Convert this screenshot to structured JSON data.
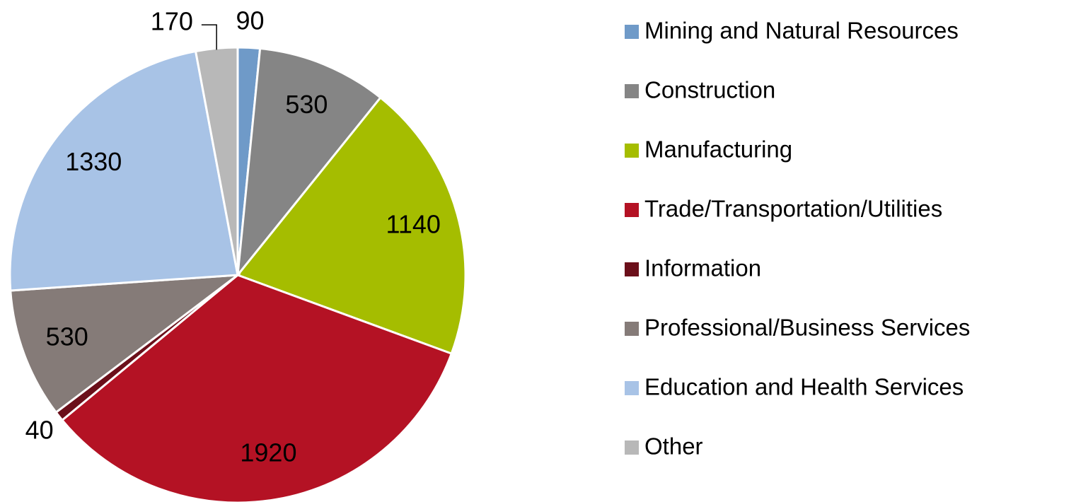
{
  "chart_data": {
    "type": "pie",
    "categories": [
      "Mining and Natural Resources",
      "Construction",
      "Manufacturing",
      "Trade/Transportation/Utilities",
      "Information",
      "Professional/Business Services",
      "Education and Health Services",
      "Other"
    ],
    "values": [
      90,
      530,
      1140,
      1920,
      40,
      530,
      1330,
      170
    ],
    "colors": [
      "#6f9ac8",
      "#858585",
      "#a5bd00",
      "#b41224",
      "#6b0f1a",
      "#857b78",
      "#a8c3e6",
      "#b8b8b8"
    ],
    "legend": "right"
  }
}
